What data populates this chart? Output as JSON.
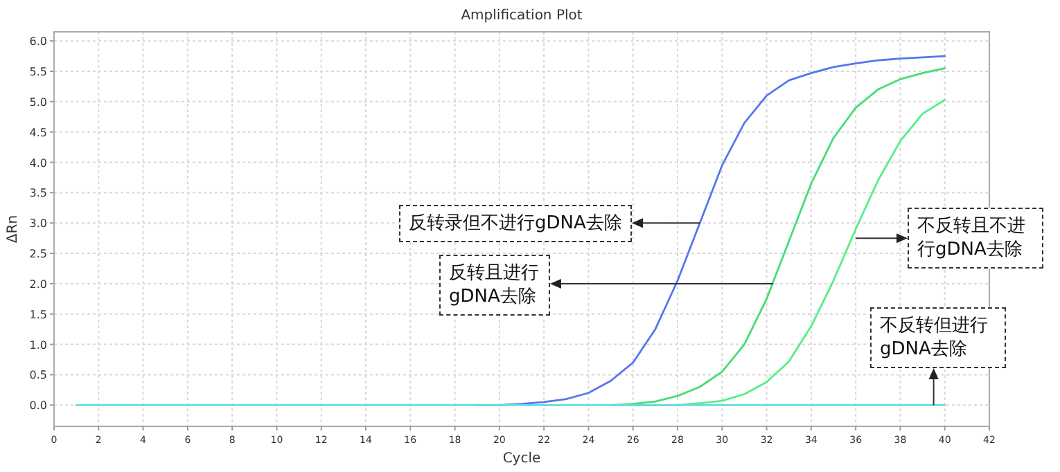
{
  "chart_data": {
    "type": "line",
    "title": "Amplification Plot",
    "xlabel": "Cycle",
    "ylabel": "ΔRn",
    "x": [
      1,
      2,
      3,
      4,
      5,
      6,
      7,
      8,
      9,
      10,
      11,
      12,
      13,
      14,
      15,
      16,
      17,
      18,
      19,
      20,
      21,
      22,
      23,
      24,
      25,
      26,
      27,
      28,
      29,
      30,
      31,
      32,
      33,
      34,
      35,
      36,
      37,
      38,
      39,
      40
    ],
    "series": [
      {
        "color": "#5577ee",
        "values": [
          null,
          null,
          null,
          null,
          null,
          null,
          null,
          null,
          null,
          null,
          null,
          null,
          null,
          null,
          null,
          null,
          null,
          null,
          0,
          0,
          0.02,
          0.05,
          0.1,
          0.2,
          0.4,
          0.7,
          1.25,
          2.05,
          3.0,
          3.95,
          4.65,
          5.1,
          5.35,
          5.47,
          5.57,
          5.63,
          5.68,
          5.71,
          5.73,
          5.75
        ]
      },
      {
        "color": "#44dd77",
        "values": [
          null,
          null,
          null,
          null,
          null,
          null,
          null,
          null,
          null,
          null,
          null,
          null,
          null,
          null,
          null,
          null,
          null,
          null,
          null,
          null,
          null,
          null,
          null,
          null,
          0,
          0.02,
          0.06,
          0.15,
          0.3,
          0.55,
          1.0,
          1.75,
          2.7,
          3.65,
          4.4,
          4.9,
          5.2,
          5.37,
          5.47,
          5.55
        ]
      },
      {
        "color": "#55ee88",
        "values": [
          null,
          null,
          null,
          null,
          null,
          null,
          null,
          null,
          null,
          null,
          null,
          null,
          null,
          null,
          null,
          null,
          null,
          null,
          null,
          null,
          null,
          null,
          null,
          null,
          0,
          0,
          0,
          0,
          0.03,
          0.07,
          0.18,
          0.38,
          0.72,
          1.3,
          2.05,
          2.9,
          3.7,
          4.35,
          4.8,
          5.03
        ]
      },
      {
        "color": "#66dddd",
        "values": [
          0,
          0,
          0,
          0,
          0,
          0,
          0,
          0,
          0,
          0,
          0,
          0,
          0,
          0,
          0,
          0,
          0,
          0,
          0,
          0,
          0,
          0,
          0,
          0,
          0,
          0,
          0,
          0,
          0,
          0,
          0,
          0,
          0,
          0,
          0,
          0,
          0,
          0,
          0,
          0
        ]
      }
    ],
    "xlim": [
      0,
      42
    ],
    "ylim": [
      -0.35,
      6.15
    ],
    "xticks": [
      0,
      2,
      4,
      6,
      8,
      10,
      12,
      14,
      16,
      18,
      20,
      22,
      24,
      26,
      28,
      30,
      32,
      34,
      36,
      38,
      40,
      42
    ],
    "yticks": [
      {
        "value": 0,
        "label": "0.0"
      },
      0.5,
      {
        "value": 1,
        "label": "1.0"
      },
      1.5,
      {
        "value": 2,
        "label": "2.0"
      },
      2.5,
      {
        "value": 3,
        "label": "3.0"
      },
      3.5,
      {
        "value": 4,
        "label": "4.0"
      },
      4.5,
      {
        "value": 5,
        "label": "5.0"
      },
      5.5,
      {
        "value": 6,
        "label": "6.0"
      }
    ],
    "grid": true,
    "marker": "none",
    "line_style": "solid",
    "annotations": [
      {
        "text": "反转录但不进行gDNA去除",
        "x": 29,
        "y": 3.0
      },
      {
        "text": "反转且进行gDNA去除",
        "x": 32.3,
        "y": 2.0
      },
      {
        "text": "不反转且不进行gDNA去除",
        "x": 36,
        "y": 2.75
      },
      {
        "text": "不反转但进行gDNA去除",
        "x": 39.5,
        "y": 0
      }
    ]
  }
}
